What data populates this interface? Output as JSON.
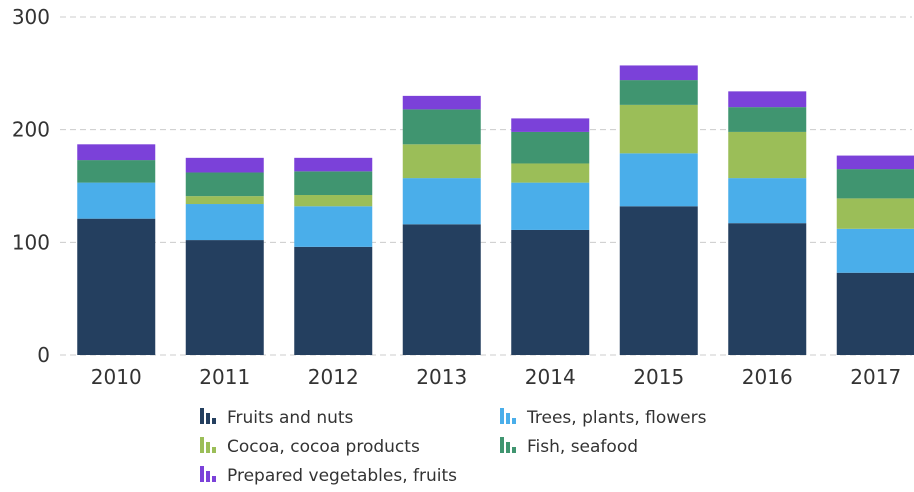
{
  "chart_data": {
    "type": "bar",
    "stacked": true,
    "categories": [
      "2010",
      "2011",
      "2012",
      "2013",
      "2014",
      "2015",
      "2016",
      "2017"
    ],
    "series": [
      {
        "name": "Fruits and nuts",
        "color": "#243f5f",
        "values": [
          121,
          102,
          96,
          116,
          111,
          132,
          117,
          73
        ]
      },
      {
        "name": "Trees, plants, flowers",
        "color": "#4aaeea",
        "values": [
          32,
          32,
          36,
          41,
          42,
          47,
          40,
          39
        ]
      },
      {
        "name": "Cocoa, cocoa products",
        "color": "#9bbe58",
        "values": [
          0,
          7,
          10,
          30,
          17,
          43,
          41,
          27
        ]
      },
      {
        "name": "Fish, seafood",
        "color": "#409570",
        "values": [
          20,
          21,
          21,
          31,
          28,
          22,
          22,
          26
        ]
      },
      {
        "name": "Prepared vegetables, fruits",
        "color": "#7b41d9",
        "values": [
          14,
          13,
          12,
          12,
          12,
          13,
          14,
          12
        ]
      }
    ],
    "yticks": [
      0,
      100,
      200,
      300
    ],
    "ylim": [
      0,
      300
    ],
    "grid": true,
    "legend_position": "bottom"
  }
}
